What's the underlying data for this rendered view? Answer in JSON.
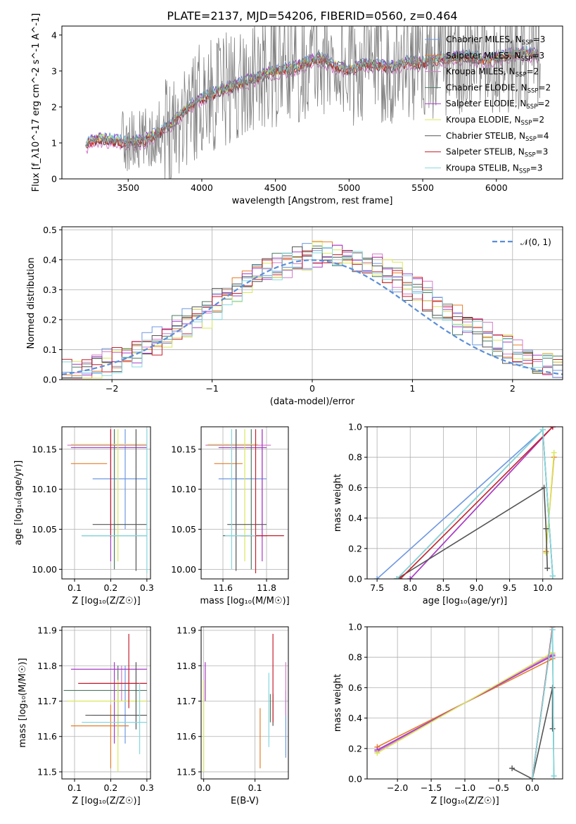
{
  "title": "PLATE=2137, MJD=54206, FIBERID=0560, z=0.464",
  "colors": [
    "#6f98e0",
    "#e67e2a",
    "#d47bc9",
    "#4f7a63",
    "#a83ac7",
    "#d9e85a",
    "#555555",
    "#c51f2a",
    "#84d8df"
  ],
  "chart_data": [
    {
      "id": "spectrum",
      "type": "line",
      "xlabel": "wavelength [Angstrom, rest frame]",
      "ylabel": "Flux [f_λ10^-17 erg cm^-2 s^-1 A^-1]",
      "xlim": [
        3050,
        6450
      ],
      "ylim": [
        0,
        4.25
      ],
      "xticks": [
        "3500",
        "4000",
        "4500",
        "5000",
        "5500",
        "6000"
      ],
      "yticks": [
        "0",
        "1",
        "2",
        "3",
        "4"
      ],
      "legend_position": "upper right",
      "series": [
        {
          "name": "Chabrier MILES, N_SSP=3"
        },
        {
          "name": "Salpeter MILES, N_SSP=3"
        },
        {
          "name": "Kroupa MILES, N_SSP=2"
        },
        {
          "name": "Chabrier ELODIE, N_SSP=2"
        },
        {
          "name": "Salpeter ELODIE, N_SSP=2"
        },
        {
          "name": "Kroupa ELODIE, N_SSP=2"
        },
        {
          "name": "Chabrier STELIB, N_SSP=4"
        },
        {
          "name": "Salpeter STELIB, N_SSP=3"
        },
        {
          "name": "Kroupa STELIB, N_SSP=3"
        }
      ],
      "model_continuum": {
        "x": [
          3210,
          3230,
          3300,
          3400,
          3500,
          3600,
          3700,
          3800,
          3900,
          4000,
          4100,
          4200,
          4300,
          4400,
          4500,
          4600,
          4700,
          4800,
          4900,
          5000,
          5100,
          5200,
          5300,
          5400,
          5500,
          5600,
          5700,
          5800,
          5900,
          6000,
          6100,
          6200,
          6300
        ],
        "y": [
          0.85,
          1.0,
          1.12,
          1.05,
          1.0,
          1.05,
          1.25,
          1.55,
          1.95,
          2.25,
          2.4,
          2.55,
          2.7,
          2.85,
          3.0,
          3.05,
          3.2,
          3.35,
          3.15,
          3.0,
          3.2,
          3.15,
          3.1,
          3.25,
          3.2,
          3.3,
          3.35,
          3.4,
          3.3,
          3.35,
          3.45,
          3.5,
          3.4
        ]
      }
    },
    {
      "id": "residuals",
      "type": "bar",
      "xlabel": "(data-model)/error",
      "ylabel": "Normed distribution",
      "xlim": [
        -2.5,
        2.5
      ],
      "ylim": [
        0,
        0.51
      ],
      "xticks": [
        "−2",
        "−1",
        "0",
        "1",
        "2"
      ],
      "yticks": [
        "0.0",
        "0.1",
        "0.2",
        "0.3",
        "0.4",
        "0.5"
      ],
      "legend": "𝒩(0, 1)",
      "bin_width": 0.1,
      "bins_from": -2.5
    },
    {
      "id": "age_vs_Z",
      "type": "scatter",
      "xlabel": "Z [log₁₀(Z/Z☉)]",
      "ylabel": "age  [log₁₀(age/yr)]",
      "xlim": [
        0.065,
        0.31
      ],
      "ylim": [
        9.988,
        10.178
      ],
      "xticks": [
        "0.1",
        "0.2",
        "0.3"
      ],
      "yticks": [
        "10.00",
        "10.05",
        "10.10",
        "10.15"
      ],
      "points": [
        {
          "x": 0.24,
          "y": 10.113,
          "xerr": [
            0.15,
            0.3
          ],
          "yerr": [
            10.05,
            10.175
          ],
          "c": 0
        },
        {
          "x": 0.13,
          "y": 10.132,
          "xerr": [
            0.09,
            0.19
          ],
          "yerr": [
            10.132,
            10.132
          ],
          "c": 1
        },
        {
          "x": 0.21,
          "y": 10.155,
          "xerr": [
            0.08,
            0.3
          ],
          "yerr": [
            10.04,
            10.175
          ],
          "c": 2
        },
        {
          "x": 0.21,
          "y": 10.042,
          "xerr": [
            0.12,
            0.3
          ],
          "yerr": [
            10.0,
            10.175
          ],
          "c": 3
        },
        {
          "x": 0.2,
          "y": 10.152,
          "xerr": [
            0.09,
            0.3
          ],
          "yerr": [
            10.01,
            10.175
          ],
          "c": 4
        },
        {
          "x": 0.22,
          "y": 10.156,
          "xerr": [
            0.09,
            0.3
          ],
          "yerr": [
            10.01,
            10.175
          ],
          "c": 5
        },
        {
          "x": 0.27,
          "y": 10.056,
          "xerr": [
            0.15,
            0.3
          ],
          "yerr": [
            9.998,
            10.175
          ],
          "c": 6
        },
        {
          "x": 0.2,
          "y": 10.113,
          "xerr": [
            0.2,
            0.2
          ],
          "yerr": [
            10.04,
            10.175
          ],
          "c": 7
        },
        {
          "x": 0.3,
          "y": 10.042,
          "xerr": [
            0.12,
            0.3
          ],
          "yerr": [
            9.995,
            10.175
          ],
          "c": 8
        }
      ]
    },
    {
      "id": "age_vs_mass",
      "type": "scatter",
      "xlabel": "mass [log₁₀(M/M☉)]",
      "ylabel": "",
      "xlim": [
        11.5,
        11.9
      ],
      "ylim": [
        9.988,
        10.178
      ],
      "xticks": [
        "11.6",
        "11.8"
      ],
      "yticks": [
        "10.00",
        "10.05",
        "10.10",
        "10.15"
      ],
      "points": [
        {
          "x": 11.66,
          "y": 10.113,
          "xerr": [
            11.58,
            11.8
          ],
          "yerr": [
            10.05,
            10.175
          ],
          "c": 0
        },
        {
          "x": 11.63,
          "y": 10.132,
          "xerr": [
            11.56,
            11.69
          ],
          "yerr": [
            10.132,
            10.132
          ],
          "c": 1
        },
        {
          "x": 11.78,
          "y": 10.155,
          "xerr": [
            11.52,
            11.82
          ],
          "yerr": [
            10.04,
            10.175
          ],
          "c": 2
        },
        {
          "x": 11.73,
          "y": 10.042,
          "xerr": [
            11.6,
            11.8
          ],
          "yerr": [
            10.0,
            10.175
          ],
          "c": 3
        },
        {
          "x": 11.78,
          "y": 10.152,
          "xerr": [
            11.58,
            11.8
          ],
          "yerr": [
            10.01,
            10.175
          ],
          "c": 4
        },
        {
          "x": 11.7,
          "y": 10.156,
          "xerr": [
            11.53,
            11.76
          ],
          "yerr": [
            10.01,
            10.175
          ],
          "c": 5
        },
        {
          "x": 11.66,
          "y": 10.056,
          "xerr": [
            11.62,
            11.8
          ],
          "yerr": [
            9.998,
            10.175
          ],
          "c": 6
        },
        {
          "x": 11.75,
          "y": 10.042,
          "xerr": [
            11.68,
            11.88
          ],
          "yerr": [
            9.995,
            10.175
          ],
          "c": 7
        },
        {
          "x": 11.64,
          "y": 10.042,
          "xerr": [
            11.61,
            11.75
          ],
          "yerr": [
            10.0,
            10.175
          ],
          "c": 8
        }
      ]
    },
    {
      "id": "weight_vs_age",
      "type": "line",
      "xlabel": "age  [log₁₀(age/yr)]",
      "ylabel": "mass weight",
      "xlim": [
        7.35,
        10.3
      ],
      "ylim": [
        0,
        1
      ],
      "xticks": [
        "7.5",
        "8.0",
        "8.5",
        "9.0",
        "9.5",
        "10.0"
      ],
      "yticks": [
        "0.0",
        "0.2",
        "0.4",
        "0.6",
        "0.8",
        "1.0"
      ],
      "series": [
        {
          "x": [
            7.5,
            10.0,
            10.15
          ],
          "y": [
            0.0,
            0.98,
            0.02
          ],
          "c": 0
        },
        {
          "x": [
            10.05,
            10.17
          ],
          "y": [
            0.18,
            0.8
          ],
          "c": 1
        },
        {
          "x": [
            8.0,
            10.15
          ],
          "y": [
            0.0,
            1.0
          ],
          "c": 2
        },
        {
          "x": [
            7.8,
            10.0,
            10.15
          ],
          "y": [
            0.0,
            0.98,
            0.02
          ],
          "c": 3
        },
        {
          "x": [
            8.0,
            10.15
          ],
          "y": [
            0.0,
            1.0
          ],
          "c": 4
        },
        {
          "x": [
            10.05,
            10.17
          ],
          "y": [
            0.17,
            0.83
          ],
          "c": 5
        },
        {
          "x": [
            7.8,
            10.02,
            10.05,
            10.07
          ],
          "y": [
            0.0,
            0.6,
            0.33,
            0.07
          ],
          "c": 6
        },
        {
          "x": [
            7.85,
            10.15
          ],
          "y": [
            0.0,
            1.0
          ],
          "c": 7
        },
        {
          "x": [
            7.8,
            10.0,
            10.15
          ],
          "y": [
            0.0,
            0.98,
            0.02
          ],
          "c": 8
        }
      ]
    },
    {
      "id": "mass_vs_Z",
      "type": "scatter",
      "xlabel": "Z [log₁₀(Z/Z☉)]",
      "ylabel": "mass [log₁₀(M/M☉)]",
      "xlim": [
        0.065,
        0.31
      ],
      "ylim": [
        11.48,
        11.91
      ],
      "xticks": [
        "0.1",
        "0.2",
        "0.3"
      ],
      "yticks": [
        "11.5",
        "11.6",
        "11.7",
        "11.8",
        "11.9"
      ],
      "points": [
        {
          "x": 0.24,
          "y": 11.66,
          "xerr": [
            0.15,
            0.3
          ],
          "yerr": [
            11.58,
            11.8
          ],
          "c": 0
        },
        {
          "x": 0.2,
          "y": 11.63,
          "xerr": [
            0.09,
            0.25
          ],
          "yerr": [
            11.51,
            11.69
          ],
          "c": 1
        },
        {
          "x": 0.23,
          "y": 11.75,
          "xerr": [
            0.14,
            0.3
          ],
          "yerr": [
            11.7,
            11.8
          ],
          "c": 2
        },
        {
          "x": 0.22,
          "y": 11.73,
          "xerr": [
            0.07,
            0.3
          ],
          "yerr": [
            11.6,
            11.8
          ],
          "c": 3
        },
        {
          "x": 0.21,
          "y": 11.79,
          "xerr": [
            0.09,
            0.3
          ],
          "yerr": [
            11.58,
            11.81
          ],
          "c": 4
        },
        {
          "x": 0.22,
          "y": 11.7,
          "xerr": [
            0.08,
            0.3
          ],
          "yerr": [
            11.5,
            11.76
          ],
          "c": 5
        },
        {
          "x": 0.27,
          "y": 11.66,
          "xerr": [
            0.13,
            0.3
          ],
          "yerr": [
            11.62,
            11.81
          ],
          "c": 6
        },
        {
          "x": 0.25,
          "y": 11.75,
          "xerr": [
            0.11,
            0.3
          ],
          "yerr": [
            11.68,
            11.89
          ],
          "c": 7
        },
        {
          "x": 0.28,
          "y": 11.64,
          "xerr": [
            0.12,
            0.3
          ],
          "yerr": [
            11.55,
            11.75
          ],
          "c": 8
        }
      ]
    },
    {
      "id": "mass_vs_EBV",
      "type": "scatter",
      "xlabel": "E(B-V)",
      "ylabel": "",
      "xlim": [
        -0.005,
        0.165
      ],
      "ylim": [
        11.48,
        11.91
      ],
      "xticks": [
        "0.0",
        "0.1"
      ],
      "yticks": [
        "11.5",
        "11.6",
        "11.7",
        "11.8",
        "11.9"
      ],
      "points": [
        {
          "x": 0.16,
          "y": 11.66,
          "yerr": [
            11.54,
            11.73
          ],
          "c": 0
        },
        {
          "x": 0.11,
          "y": 11.6,
          "yerr": [
            11.51,
            11.68
          ],
          "c": 1
        },
        {
          "x": 0.16,
          "y": 11.75,
          "yerr": [
            11.66,
            11.81
          ],
          "c": 2
        },
        {
          "x": 0.13,
          "y": 11.7,
          "yerr": [
            11.64,
            11.72
          ],
          "c": 3
        },
        {
          "x": 0.003,
          "y": 11.76,
          "yerr": [
            11.7,
            11.81
          ],
          "c": 4
        },
        {
          "x": 0.0,
          "y": 11.7,
          "yerr": [
            11.5,
            11.76
          ],
          "c": 5
        },
        {
          "x": 0.135,
          "y": 11.66,
          "yerr": [
            11.63,
            11.72
          ],
          "c": 6
        },
        {
          "x": 0.135,
          "y": 11.75,
          "yerr": [
            11.64,
            11.89
          ],
          "c": 7
        },
        {
          "x": 0.127,
          "y": 11.66,
          "yerr": [
            11.57,
            11.78
          ],
          "c": 8
        }
      ]
    },
    {
      "id": "weight_vs_Z",
      "type": "line",
      "xlabel": "Z [log₁₀(Z/Z☉)]",
      "ylabel": "mass weight",
      "xlim": [
        -2.45,
        0.45
      ],
      "ylim": [
        0,
        1
      ],
      "xticks": [
        "−2.0",
        "−1.5",
        "−1.0",
        "−0.5",
        "0.0"
      ],
      "yticks": [
        "0.0",
        "0.2",
        "0.4",
        "0.6",
        "0.8",
        "1.0"
      ],
      "series": [
        {
          "x": [
            -2.3,
            0.3
          ],
          "y": [
            0.19,
            0.81
          ],
          "c": 0
        },
        {
          "x": [
            -2.3,
            0.3
          ],
          "y": [
            0.21,
            0.79
          ],
          "c": 1
        },
        {
          "x": [
            -2.3,
            0.3
          ],
          "y": [
            0.18,
            0.82
          ],
          "c": 2
        },
        {
          "x": [
            0.0,
            0.3,
            0.32
          ],
          "y": [
            0.0,
            0.98,
            0.02
          ],
          "c": 3
        },
        {
          "x": [
            -2.3,
            0.3
          ],
          "y": [
            0.19,
            0.81
          ],
          "c": 4
        },
        {
          "x": [
            -2.3,
            0.3
          ],
          "y": [
            0.17,
            0.83
          ],
          "c": 5
        },
        {
          "x": [
            -0.3,
            0.0,
            0.3,
            0.3
          ],
          "y": [
            0.07,
            0.0,
            0.6,
            0.33
          ],
          "c": 6
        },
        {
          "x": [
            0.0,
            0.3
          ],
          "y": [
            0.0,
            1.0
          ],
          "c": 7
        },
        {
          "x": [
            0.0,
            0.3,
            0.32
          ],
          "y": [
            0.0,
            0.98,
            0.02
          ],
          "c": 8
        }
      ]
    }
  ]
}
